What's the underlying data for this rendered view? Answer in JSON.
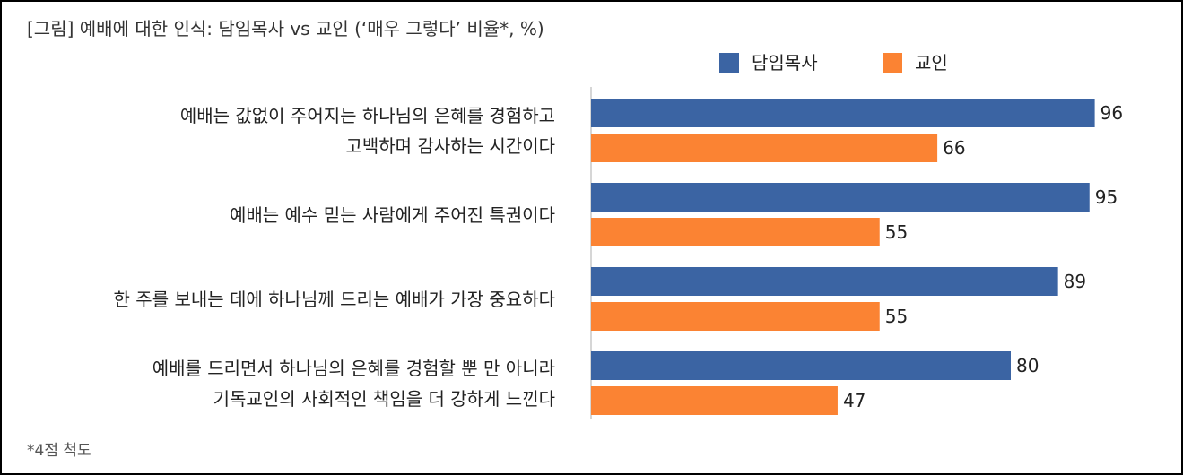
{
  "header": {
    "title": "[그림] 예배에 대한 인식: 담임목사 vs 교인 (‘매우 그렇다’ 비율*, %)"
  },
  "footnote": "*4점 척도",
  "colors": {
    "pastor": "#3b64a3",
    "member": "#fb8333",
    "axis": "#c8c8c8"
  },
  "chart_data": {
    "type": "bar",
    "orientation": "horizontal",
    "title": "[그림] 예배에 대한 인식: 담임목사 vs 교인 (‘매우 그렇다’ 비율*, %)",
    "legend_position": "top-right",
    "grid": false,
    "xlim": [
      0,
      100
    ],
    "categories": [
      [
        "예배는 값없이 주어지는 하나님의 은혜를 경험하고",
        "고백하며 감사하는 시간이다"
      ],
      [
        "예배는 예수 믿는 사람에게 주어진 특권이다"
      ],
      [
        "한 주를 보내는 데에 하나님께 드리는 예배가 가장 중요하다"
      ],
      [
        "예배를 드리면서 하나님의 은혜를 경험할 뿐 만 아니라",
        "기독교인의 사회적인 책임을 더 강하게 느낀다"
      ]
    ],
    "series": [
      {
        "name": "담임목사",
        "values": [
          96,
          95,
          89,
          80
        ]
      },
      {
        "name": "교인",
        "values": [
          66,
          55,
          55,
          47
        ]
      }
    ]
  }
}
